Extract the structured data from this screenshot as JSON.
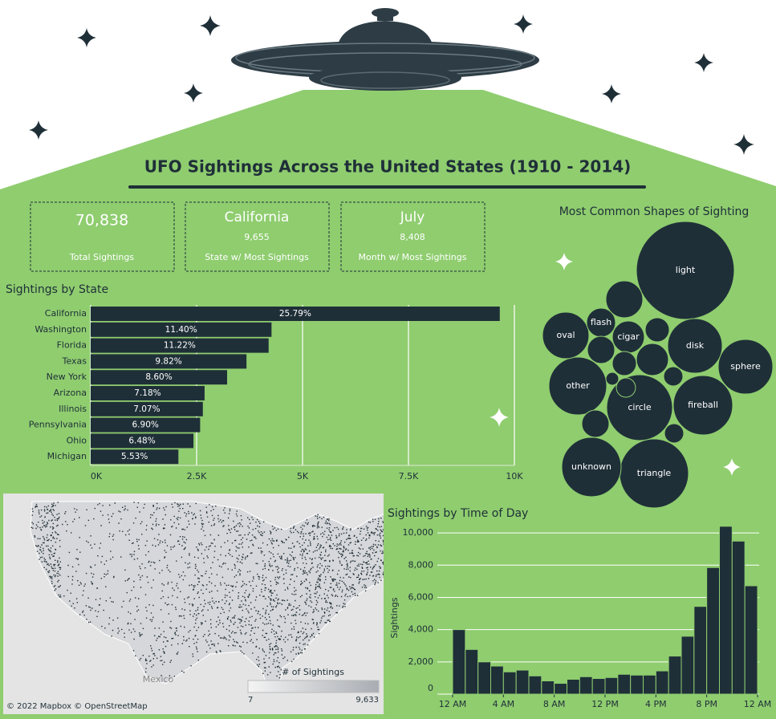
{
  "header": {
    "title": "UFO Sightings Across the United States (1910 - 2014)"
  },
  "kpis": [
    {
      "value": "70,838",
      "label": "Total Sightings"
    },
    {
      "value": "California",
      "detail": "9,655",
      "label": "State w/ Most Sightings"
    },
    {
      "value": "July",
      "detail": "8,408",
      "label": "Month w/ Most Sightings"
    }
  ],
  "map": {
    "legend_title": "# of Sightings",
    "legend_ticks": [
      7,
      {
        "value": 9633,
        "label": "9,633"
      }
    ],
    "credit": "© 2022 Mapbox © OpenStreetMap",
    "place_label": "Mexico"
  },
  "chart_data": [
    {
      "type": "bar",
      "orientation": "horizontal",
      "title": "Sightings by State",
      "categories": [
        "California",
        "Washington",
        "Florida",
        "Texas",
        "New York",
        "Arizona",
        "Illinois",
        "Pennsylvania",
        "Ohio",
        "Michigan"
      ],
      "values": [
        9655,
        4268,
        4200,
        3677,
        3220,
        2688,
        2647,
        2583,
        2426,
        2070
      ],
      "value_labels": [
        "25.79%",
        "11.40%",
        "11.22%",
        "9.82%",
        "8.60%",
        "7.18%",
        "7.07%",
        "6.90%",
        "6.48%",
        "5.53%"
      ],
      "color": "#1f2f38",
      "xlim": [
        0,
        10000
      ],
      "xticks": [
        {
          "value": 0,
          "label": "0K"
        },
        {
          "value": 2500,
          "label": "2.5K"
        },
        {
          "value": 5000,
          "label": "5K"
        },
        {
          "value": 7500,
          "label": "7.5K"
        },
        {
          "value": 10000,
          "label": "10K"
        }
      ],
      "grid": true
    },
    {
      "type": "bubble",
      "title": "Most Common Shapes of Sighting",
      "categories": [
        "light",
        "triangle",
        "circle",
        "fireball",
        "unknown",
        "other",
        "sphere",
        "disk",
        "oval",
        "cigar",
        "flash",
        null,
        null,
        null,
        null,
        null,
        null,
        null,
        null,
        null,
        null
      ],
      "values": [
        14000,
        6960,
        6330,
        5150,
        5150,
        4880,
        4350,
        4350,
        3160,
        1500,
        1220,
        1990,
        850,
        1090,
        1500,
        850,
        540,
        540,
        240,
        1090,
        540
      ],
      "color": "#1f2f38"
    },
    {
      "type": "histogram",
      "title": "Sightings by Time of Day",
      "y_label": "Sightings",
      "bins": [
        0,
        1,
        2,
        3,
        4,
        5,
        6,
        7,
        8,
        9,
        10,
        11,
        12,
        13,
        14,
        15,
        16,
        17,
        18,
        19,
        20,
        21,
        22,
        23,
        24
      ],
      "values": [
        4000,
        2770,
        2000,
        1740,
        1380,
        1490,
        1130,
        820,
        670,
        920,
        1080,
        970,
        1030,
        1230,
        1180,
        1180,
        1440,
        2360,
        3590,
        5440,
        7850,
        10410,
        9490,
        6720
      ],
      "color": "#1f2f38",
      "xlim": [
        0,
        24
      ],
      "xticks": [
        {
          "value": 0,
          "label": "12 AM"
        },
        {
          "value": 4,
          "label": "4 AM"
        },
        {
          "value": 8,
          "label": "8 AM"
        },
        {
          "value": 12,
          "label": "12 PM"
        },
        {
          "value": 16,
          "label": "4 PM"
        },
        {
          "value": 20,
          "label": "8 PM"
        },
        {
          "value": 24,
          "label": "12 AM"
        }
      ],
      "ylim": [
        0,
        10700
      ],
      "yticks": [
        0,
        {
          "value": 2000,
          "label": "2,000"
        },
        {
          "value": 4000,
          "label": "4,000"
        },
        {
          "value": 6000,
          "label": "6,000"
        },
        {
          "value": 8000,
          "label": "8,000"
        },
        {
          "value": 10000,
          "label": "10,000"
        }
      ],
      "grid": true
    }
  ]
}
